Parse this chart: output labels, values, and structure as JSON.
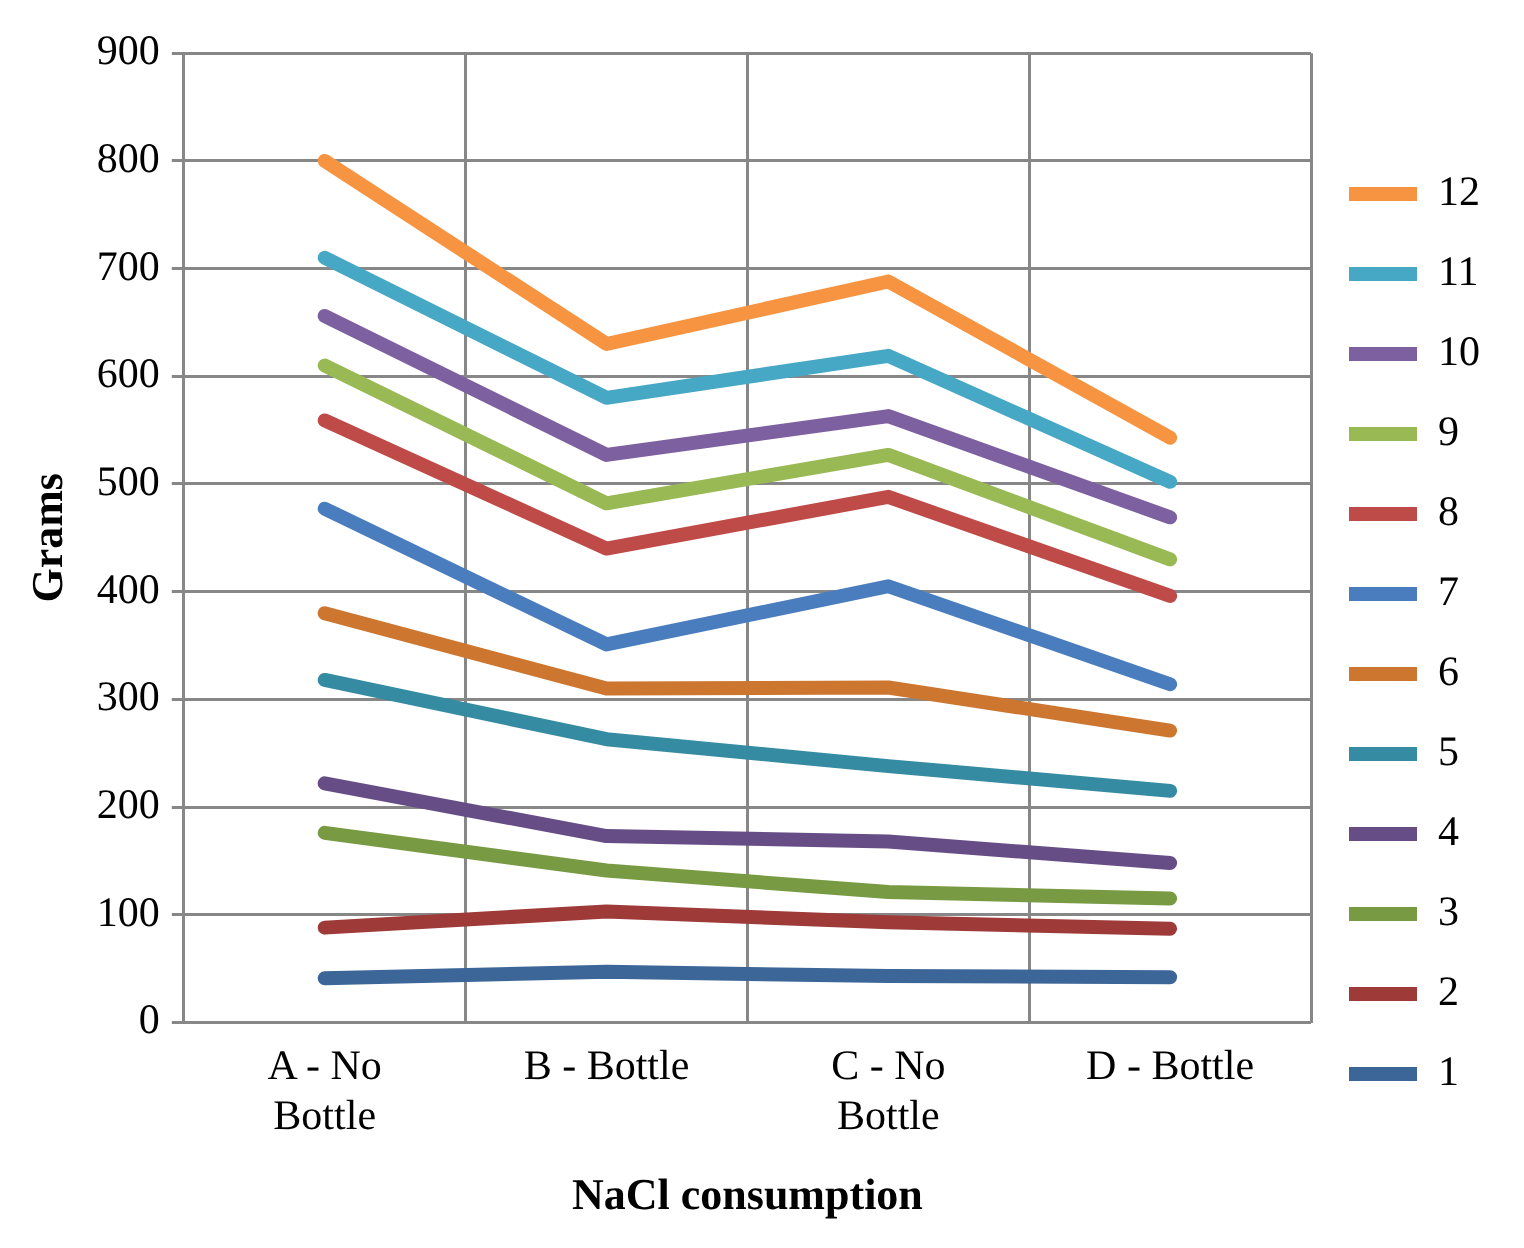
{
  "chart_data": {
    "type": "line",
    "xlabel": "NaCl consumption",
    "ylabel": "Grams",
    "categories": [
      "A - No Bottle",
      "B - Bottle",
      "C - No Bottle",
      "D - Bottle"
    ],
    "ylim": [
      0,
      900
    ],
    "yticks": [
      0,
      100,
      200,
      300,
      400,
      500,
      600,
      700,
      800,
      900
    ],
    "grid": true,
    "legend": "right",
    "marker": "none",
    "line_style": "solid",
    "series": [
      {
        "name": "1",
        "color": "#3c6698",
        "values": [
          41,
          47,
          43,
          42
        ]
      },
      {
        "name": "2",
        "color": "#9e3a38",
        "values": [
          88,
          103,
          93,
          87
        ]
      },
      {
        "name": "3",
        "color": "#789a42",
        "values": [
          176,
          141,
          121,
          115
        ]
      },
      {
        "name": "4",
        "color": "#664d86",
        "values": [
          222,
          173,
          168,
          148
        ]
      },
      {
        "name": "5",
        "color": "#358ba1",
        "values": [
          318,
          263,
          238,
          215
        ]
      },
      {
        "name": "6",
        "color": "#cc7630",
        "values": [
          380,
          310,
          311,
          271
        ]
      },
      {
        "name": "7",
        "color": "#4a7dbd",
        "values": [
          477,
          351,
          405,
          314
        ]
      },
      {
        "name": "8",
        "color": "#be4b48",
        "values": [
          559,
          440,
          488,
          396
        ]
      },
      {
        "name": "9",
        "color": "#98b954",
        "values": [
          610,
          482,
          527,
          430
        ]
      },
      {
        "name": "10",
        "color": "#7d60a0",
        "values": [
          656,
          527,
          563,
          469
        ]
      },
      {
        "name": "11",
        "color": "#46a8c5",
        "values": [
          710,
          580,
          619,
          502
        ]
      },
      {
        "name": "12",
        "color": "#f79441",
        "values": [
          800,
          630,
          688,
          543
        ]
      }
    ]
  }
}
